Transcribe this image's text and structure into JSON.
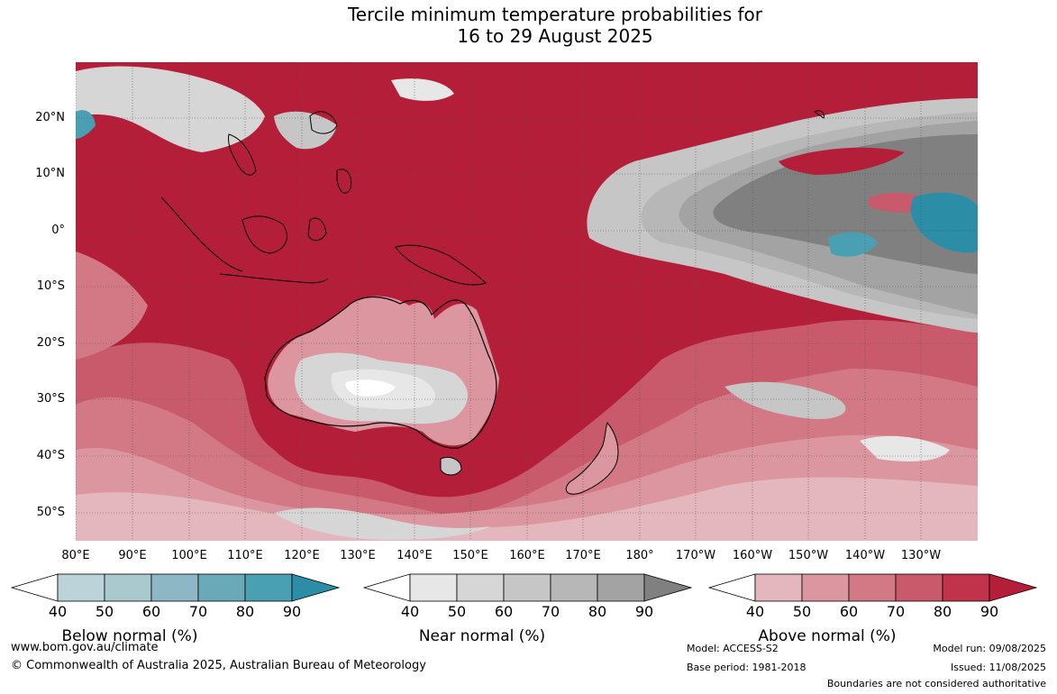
{
  "title": {
    "line1": "Tercile minimum temperature probabilities for",
    "line2": "16 to 29 August 2025"
  },
  "map": {
    "lat_labels": [
      "20°N",
      "10°N",
      "0°",
      "10°S",
      "20°S",
      "30°S",
      "40°S",
      "50°S"
    ],
    "lon_labels": [
      "80°E",
      "90°E",
      "100°E",
      "110°E",
      "120°E",
      "130°E",
      "140°E",
      "150°E",
      "160°E",
      "170°E",
      "180°",
      "170°W",
      "160°W",
      "150°W",
      "140°W",
      "130°W"
    ],
    "colors": {
      "above_90": "#b41e38",
      "above_80": "#c1334a",
      "above_70": "#c95a6b",
      "above_60": "#d27985",
      "above_50": "#db969f",
      "above_40": "#e4b6bd",
      "near_90": "#808080",
      "near_80": "#a3a3a3",
      "near_70": "#b7b7b7",
      "near_60": "#c6c6c6",
      "near_50": "#d6d6d6",
      "near_40": "#e7e7e7",
      "below_80": "#4aa0b3",
      "below_90": "#2b8ea6",
      "land_outline": "#000000"
    }
  },
  "legends": [
    {
      "title": "Below normal (%)",
      "ticks": [
        "40",
        "50",
        "60",
        "70",
        "80",
        "90"
      ],
      "colors": [
        "#bcd3d9",
        "#a9c9cf",
        "#8db7c4",
        "#6aa9b7",
        "#4aa0b3",
        "#2b8ea6"
      ]
    },
    {
      "title": "Near normal (%)",
      "ticks": [
        "40",
        "50",
        "60",
        "70",
        "80",
        "90"
      ],
      "colors": [
        "#e7e7e7",
        "#d6d6d6",
        "#c6c6c6",
        "#b7b7b7",
        "#a3a3a3",
        "#808080"
      ]
    },
    {
      "title": "Above normal (%)",
      "ticks": [
        "40",
        "50",
        "60",
        "70",
        "80",
        "90"
      ],
      "colors": [
        "#e4b6bd",
        "#db969f",
        "#d27985",
        "#c95a6b",
        "#c1334a",
        "#b41e38"
      ]
    }
  ],
  "footer": {
    "website": "www.bom.gov.au/climate",
    "copyright": "© Commonwealth of Australia 2025, Australian Bureau of Meteorology",
    "model": "Model: ACCESS-S2",
    "base_period": "Base period: 1981-2018",
    "model_run": "Model run: 09/08/2025",
    "issued": "Issued: 11/08/2025",
    "disclaimer": "Boundaries are not considered authoritative"
  }
}
